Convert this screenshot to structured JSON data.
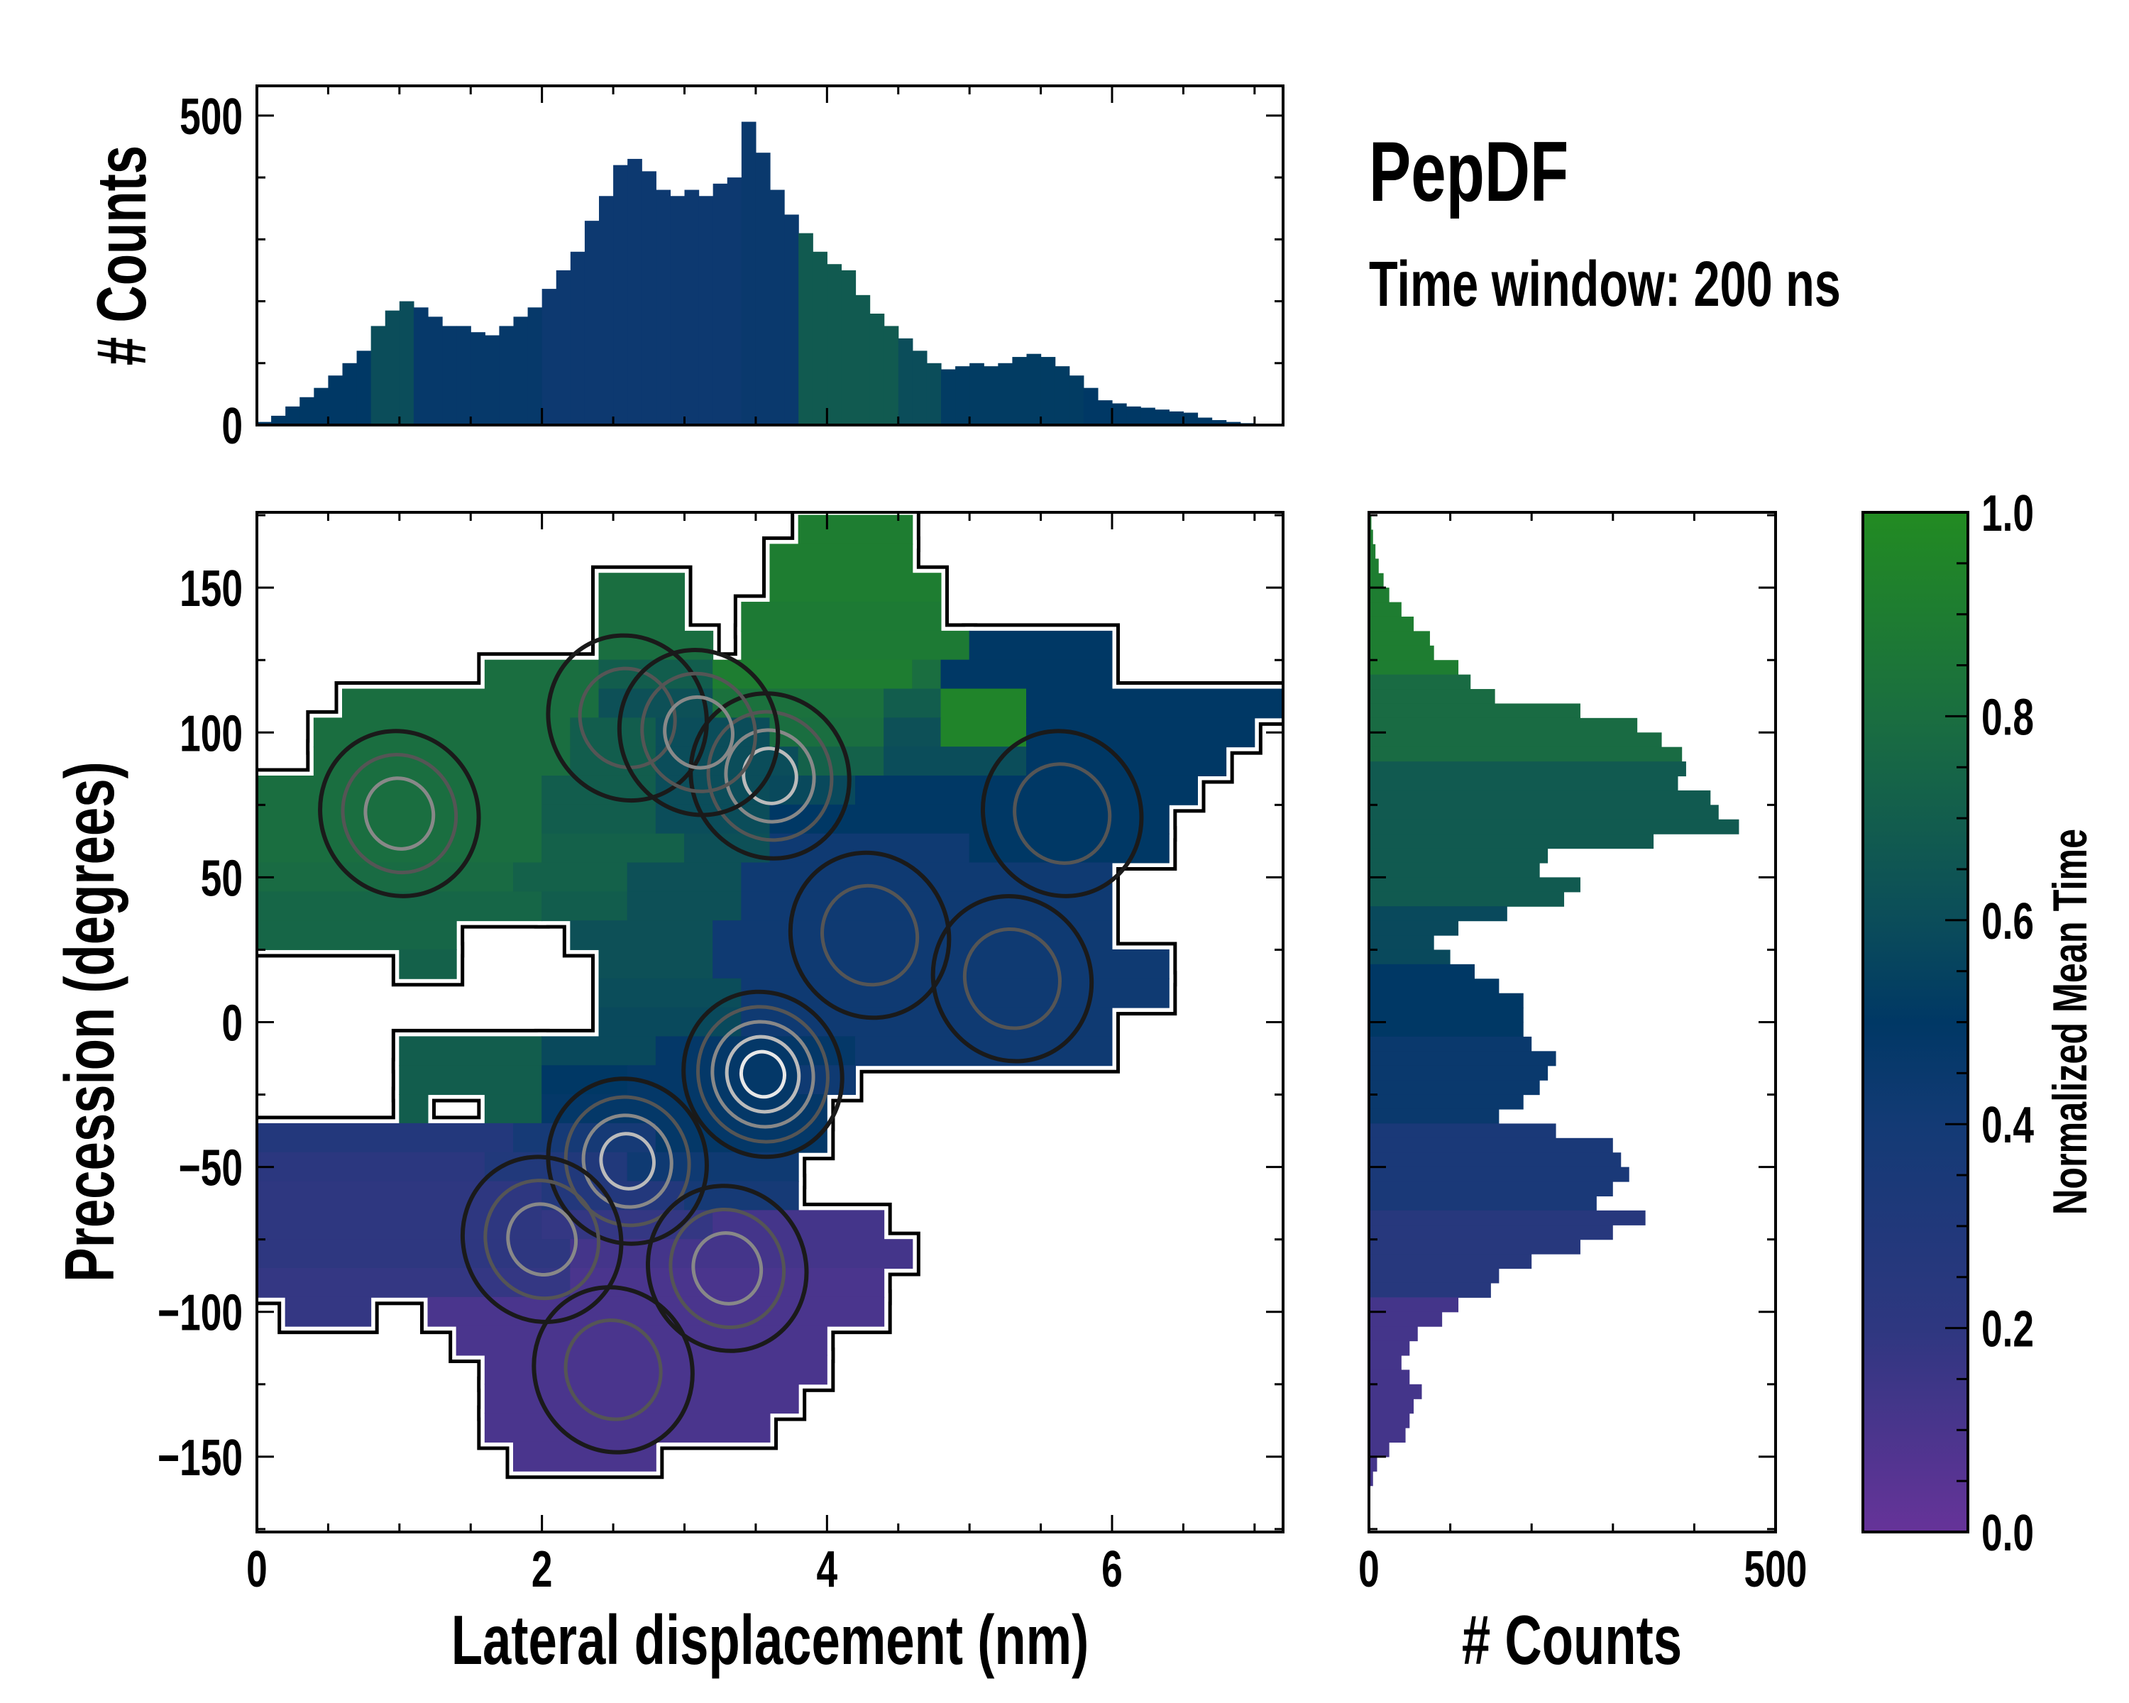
{
  "chart_data": [
    {
      "type": "heatmap",
      "name": "main-2d-histogram",
      "title": "PepDF",
      "subtitle": "Time window: 200 ns",
      "xlabel": "Lateral displacement (nm)",
      "ylabel": "Precession (degrees)",
      "xlim": [
        0,
        7.2
      ],
      "ylim": [
        -176,
        176
      ],
      "xticks": [
        0,
        2,
        4,
        6
      ],
      "xtick_labels": [
        "0",
        "2",
        "4",
        "6"
      ],
      "yticks": [
        150,
        100,
        50,
        0,
        -50,
        -100,
        -150
      ],
      "ytick_labels": [
        "150",
        "100",
        "50",
        "0",
        "−50",
        "−100",
        "−150"
      ],
      "cell_height_deg": 10,
      "rows": [
        {
          "y": 170,
          "runs": [
            [
              3.8,
              4.6,
              0.9
            ]
          ]
        },
        {
          "y": 160,
          "runs": [
            [
              3.6,
              4.6,
              0.9
            ]
          ]
        },
        {
          "y": 150,
          "runs": [
            [
              2.4,
              3.0,
              0.8
            ],
            [
              3.6,
              4.8,
              0.9
            ]
          ]
        },
        {
          "y": 140,
          "runs": [
            [
              2.4,
              3.0,
              0.8
            ],
            [
              3.4,
              4.8,
              0.88
            ]
          ]
        },
        {
          "y": 130,
          "runs": [
            [
              2.4,
              3.2,
              0.8
            ],
            [
              3.4,
              5.0,
              0.88
            ],
            [
              5.0,
              6.0,
              0.5
            ]
          ]
        },
        {
          "y": 120,
          "runs": [
            [
              1.6,
              2.4,
              0.8
            ],
            [
              2.4,
              3.2,
              0.7
            ],
            [
              3.2,
              4.6,
              0.9
            ],
            [
              4.6,
              4.8,
              0.8
            ],
            [
              4.8,
              6.0,
              0.5
            ]
          ]
        },
        {
          "y": 110,
          "runs": [
            [
              0.6,
              2.4,
              0.8
            ],
            [
              2.4,
              3.2,
              0.62
            ],
            [
              3.2,
              4.4,
              0.82
            ],
            [
              4.4,
              4.8,
              0.7
            ],
            [
              4.8,
              5.4,
              0.95
            ],
            [
              5.4,
              7.2,
              0.5
            ]
          ]
        },
        {
          "y": 100,
          "runs": [
            [
              0.4,
              2.2,
              0.8
            ],
            [
              2.2,
              2.8,
              0.7
            ],
            [
              2.8,
              3.6,
              0.6
            ],
            [
              3.6,
              4.4,
              0.8
            ],
            [
              4.4,
              4.8,
              0.62
            ],
            [
              4.8,
              5.4,
              0.95
            ],
            [
              5.4,
              7.0,
              0.5
            ]
          ]
        },
        {
          "y": 90,
          "runs": [
            [
              0.4,
              2.2,
              0.8
            ],
            [
              2.2,
              2.8,
              0.7
            ],
            [
              2.8,
              3.8,
              0.6
            ],
            [
              3.8,
              4.4,
              0.72
            ],
            [
              4.4,
              5.4,
              0.6
            ],
            [
              5.4,
              6.8,
              0.5
            ]
          ]
        },
        {
          "y": 80,
          "runs": [
            [
              0,
              2.0,
              0.8
            ],
            [
              2.0,
              2.8,
              0.7
            ],
            [
              2.8,
              3.6,
              0.6
            ],
            [
              3.6,
              4.2,
              0.58
            ],
            [
              4.2,
              6.6,
              0.5
            ]
          ]
        },
        {
          "y": 70,
          "runs": [
            [
              0,
              2.0,
              0.8
            ],
            [
              2.0,
              2.8,
              0.7
            ],
            [
              2.8,
              3.6,
              0.6
            ],
            [
              3.6,
              6.4,
              0.5
            ]
          ]
        },
        {
          "y": 60,
          "runs": [
            [
              0,
              2.0,
              0.8
            ],
            [
              2.0,
              3.0,
              0.72
            ],
            [
              3.0,
              3.6,
              0.62
            ],
            [
              3.6,
              5.0,
              0.42
            ],
            [
              5.0,
              6.4,
              0.5
            ]
          ]
        },
        {
          "y": 50,
          "runs": [
            [
              0,
              1.8,
              0.78
            ],
            [
              1.8,
              2.6,
              0.72
            ],
            [
              2.6,
              3.4,
              0.62
            ],
            [
              3.4,
              6.0,
              0.42
            ]
          ]
        },
        {
          "y": 40,
          "runs": [
            [
              0,
              2.0,
              0.75
            ],
            [
              2.0,
              2.6,
              0.7
            ],
            [
              2.6,
              3.4,
              0.62
            ],
            [
              3.4,
              6.0,
              0.42
            ]
          ]
        },
        {
          "y": 30,
          "runs": [
            [
              0,
              1.4,
              0.75
            ],
            [
              2.2,
              3.2,
              0.62
            ],
            [
              3.2,
              6.0,
              0.42
            ]
          ]
        },
        {
          "y": 20,
          "runs": [
            [
              1.0,
              1.4,
              0.72
            ],
            [
              2.4,
              3.2,
              0.62
            ],
            [
              3.2,
              6.4,
              0.42
            ]
          ]
        },
        {
          "y": 10,
          "runs": [
            [
              2.4,
              3.4,
              0.6
            ],
            [
              3.4,
              6.4,
              0.42
            ]
          ]
        },
        {
          "y": 0,
          "runs": [
            [
              2.4,
              3.4,
              0.58
            ],
            [
              3.4,
              6.0,
              0.42
            ]
          ]
        },
        {
          "y": -10,
          "runs": [
            [
              1.0,
              2.0,
              0.7
            ],
            [
              2.0,
              2.8,
              0.58
            ],
            [
              2.8,
              4.2,
              0.48
            ],
            [
              4.2,
              6.0,
              0.42
            ]
          ]
        },
        {
          "y": -20,
          "runs": [
            [
              1.0,
              2.0,
              0.7
            ],
            [
              2.0,
              2.6,
              0.5
            ],
            [
              2.6,
              3.8,
              0.48
            ],
            [
              3.8,
              4.2,
              0.42
            ]
          ]
        },
        {
          "y": -30,
          "runs": [
            [
              1.0,
              1.2,
              0.7
            ],
            [
              1.6,
              2.0,
              0.7
            ],
            [
              2.0,
              4.0,
              0.48
            ]
          ]
        },
        {
          "y": -40,
          "runs": [
            [
              0,
              1.8,
              0.28
            ],
            [
              1.8,
              2.8,
              0.38
            ],
            [
              2.8,
              4.0,
              0.48
            ]
          ]
        },
        {
          "y": -50,
          "runs": [
            [
              0,
              1.6,
              0.22
            ],
            [
              1.6,
              2.6,
              0.3
            ],
            [
              2.6,
              3.8,
              0.42
            ]
          ]
        },
        {
          "y": -60,
          "runs": [
            [
              0,
              2.0,
              0.2
            ],
            [
              2.0,
              3.0,
              0.28
            ],
            [
              3.0,
              3.8,
              0.38
            ]
          ]
        },
        {
          "y": -70,
          "runs": [
            [
              0,
              2.0,
              0.2
            ],
            [
              2.0,
              3.2,
              0.18
            ],
            [
              3.2,
              4.4,
              0.12
            ]
          ]
        },
        {
          "y": -80,
          "runs": [
            [
              0,
              2.2,
              0.2
            ],
            [
              2.2,
              4.6,
              0.12
            ]
          ]
        },
        {
          "y": -90,
          "runs": [
            [
              0,
              2.2,
              0.18
            ],
            [
              2.2,
              4.4,
              0.1
            ]
          ]
        },
        {
          "y": -100,
          "runs": [
            [
              0.2,
              0.8,
              0.18
            ],
            [
              1.2,
              4.4,
              0.1
            ]
          ]
        },
        {
          "y": -110,
          "runs": [
            [
              1.4,
              4.0,
              0.1
            ]
          ]
        },
        {
          "y": -120,
          "runs": [
            [
              1.6,
              4.0,
              0.1
            ]
          ]
        },
        {
          "y": -130,
          "runs": [
            [
              1.6,
              3.8,
              0.1
            ]
          ]
        },
        {
          "y": -140,
          "runs": [
            [
              1.6,
              3.6,
              0.1
            ]
          ]
        },
        {
          "y": -150,
          "runs": [
            [
              1.8,
              2.8,
              0.1
            ]
          ]
        }
      ],
      "density_peaks": [
        {
          "x": 3.6,
          "y": 85,
          "levels": 4
        },
        {
          "x": 3.55,
          "y": -18,
          "levels": 5
        },
        {
          "x": 2.6,
          "y": -48,
          "levels": 4
        },
        {
          "x": 2.0,
          "y": -75,
          "levels": 3
        },
        {
          "x": 3.3,
          "y": -85,
          "levels": 3
        },
        {
          "x": 1.0,
          "y": 72,
          "levels": 3
        },
        {
          "x": 5.65,
          "y": 72,
          "levels": 2
        },
        {
          "x": 2.6,
          "y": 105,
          "levels": 2
        },
        {
          "x": 3.1,
          "y": 100,
          "levels": 3
        },
        {
          "x": 4.3,
          "y": 30,
          "levels": 2
        },
        {
          "x": 5.3,
          "y": 15,
          "levels": 2
        },
        {
          "x": 2.5,
          "y": -120,
          "levels": 2
        }
      ]
    },
    {
      "type": "bar",
      "name": "top-marginal-histogram",
      "ylabel": "# Counts",
      "xlim": [
        0,
        7.2
      ],
      "ylim": [
        0,
        548
      ],
      "yticks": [
        0,
        500
      ],
      "ytick_labels": [
        "0",
        "500"
      ],
      "bin_start": 0,
      "bin_width": 0.1,
      "counts": [
        5,
        15,
        30,
        45,
        60,
        80,
        100,
        120,
        160,
        185,
        200,
        190,
        175,
        160,
        160,
        150,
        145,
        160,
        175,
        190,
        220,
        250,
        280,
        330,
        370,
        420,
        430,
        410,
        380,
        370,
        380,
        370,
        390,
        400,
        490,
        440,
        380,
        340,
        310,
        280,
        260,
        250,
        210,
        180,
        160,
        140,
        120,
        100,
        90,
        95,
        100,
        95,
        100,
        110,
        115,
        110,
        95,
        80,
        60,
        40,
        35,
        30,
        28,
        25,
        22,
        20,
        12,
        8,
        5,
        3,
        2,
        0
      ],
      "mean_time": [
        0.5,
        0.5,
        0.5,
        0.5,
        0.5,
        0.5,
        0.5,
        0.5,
        0.6,
        0.6,
        0.6,
        0.47,
        0.47,
        0.47,
        0.47,
        0.47,
        0.47,
        0.47,
        0.47,
        0.47,
        0.43,
        0.43,
        0.43,
        0.43,
        0.43,
        0.43,
        0.43,
        0.43,
        0.43,
        0.43,
        0.43,
        0.43,
        0.43,
        0.43,
        0.45,
        0.45,
        0.45,
        0.45,
        0.68,
        0.68,
        0.68,
        0.68,
        0.68,
        0.68,
        0.68,
        0.6,
        0.6,
        0.6,
        0.52,
        0.52,
        0.52,
        0.52,
        0.52,
        0.52,
        0.52,
        0.52,
        0.52,
        0.52,
        0.5,
        0.5,
        0.5,
        0.5,
        0.5,
        0.5,
        0.5,
        0.5,
        0.5,
        0.5,
        0.5,
        0.5,
        0.5,
        0.5
      ]
    },
    {
      "type": "bar",
      "name": "right-marginal-histogram",
      "orientation": "horizontal",
      "xlabel": "# Counts",
      "xlim": [
        0,
        500
      ],
      "xticks": [
        0,
        500
      ],
      "xtick_labels": [
        "0",
        "500"
      ],
      "bin_top_start": 175,
      "bin_width": 5,
      "counts": [
        3,
        5,
        8,
        12,
        18,
        25,
        40,
        55,
        75,
        80,
        110,
        125,
        155,
        260,
        330,
        360,
        385,
        390,
        380,
        420,
        430,
        455,
        350,
        220,
        210,
        260,
        240,
        170,
        110,
        80,
        100,
        130,
        160,
        190,
        190,
        190,
        200,
        230,
        220,
        210,
        190,
        160,
        230,
        300,
        310,
        320,
        300,
        280,
        340,
        300,
        260,
        200,
        160,
        150,
        110,
        90,
        60,
        50,
        40,
        50,
        65,
        55,
        50,
        45,
        25,
        10,
        5
      ],
      "mean_time": [
        0.9,
        0.9,
        0.9,
        0.9,
        0.9,
        0.9,
        0.9,
        0.9,
        0.9,
        0.9,
        0.9,
        0.78,
        0.78,
        0.78,
        0.78,
        0.78,
        0.78,
        0.68,
        0.68,
        0.68,
        0.68,
        0.68,
        0.68,
        0.68,
        0.68,
        0.68,
        0.68,
        0.58,
        0.58,
        0.58,
        0.58,
        0.5,
        0.5,
        0.5,
        0.5,
        0.5,
        0.45,
        0.45,
        0.45,
        0.45,
        0.45,
        0.45,
        0.35,
        0.35,
        0.35,
        0.35,
        0.35,
        0.35,
        0.25,
        0.25,
        0.25,
        0.25,
        0.25,
        0.25,
        0.12,
        0.12,
        0.12,
        0.12,
        0.12,
        0.12,
        0.12,
        0.12,
        0.12,
        0.12,
        0.12,
        0.12,
        0.12
      ]
    },
    {
      "type": "colorbar",
      "name": "colorbar",
      "label": "Normalized Mean Time",
      "range": [
        0,
        1
      ],
      "ticks": [
        0,
        0.2,
        0.4,
        0.6,
        0.8,
        1.0
      ],
      "tick_labels": [
        "0.0",
        "0.2",
        "0.4",
        "0.6",
        "0.8",
        "1.0"
      ],
      "colormap": [
        {
          "v": 0.0,
          "color": "#663399"
        },
        {
          "v": 0.2,
          "color": "#2e3780"
        },
        {
          "v": 0.4,
          "color": "#133a75"
        },
        {
          "v": 0.5,
          "color": "#003865"
        },
        {
          "v": 0.6,
          "color": "#0b4d5a"
        },
        {
          "v": 0.8,
          "color": "#1a6e40"
        },
        {
          "v": 1.0,
          "color": "#228b22"
        }
      ]
    }
  ]
}
